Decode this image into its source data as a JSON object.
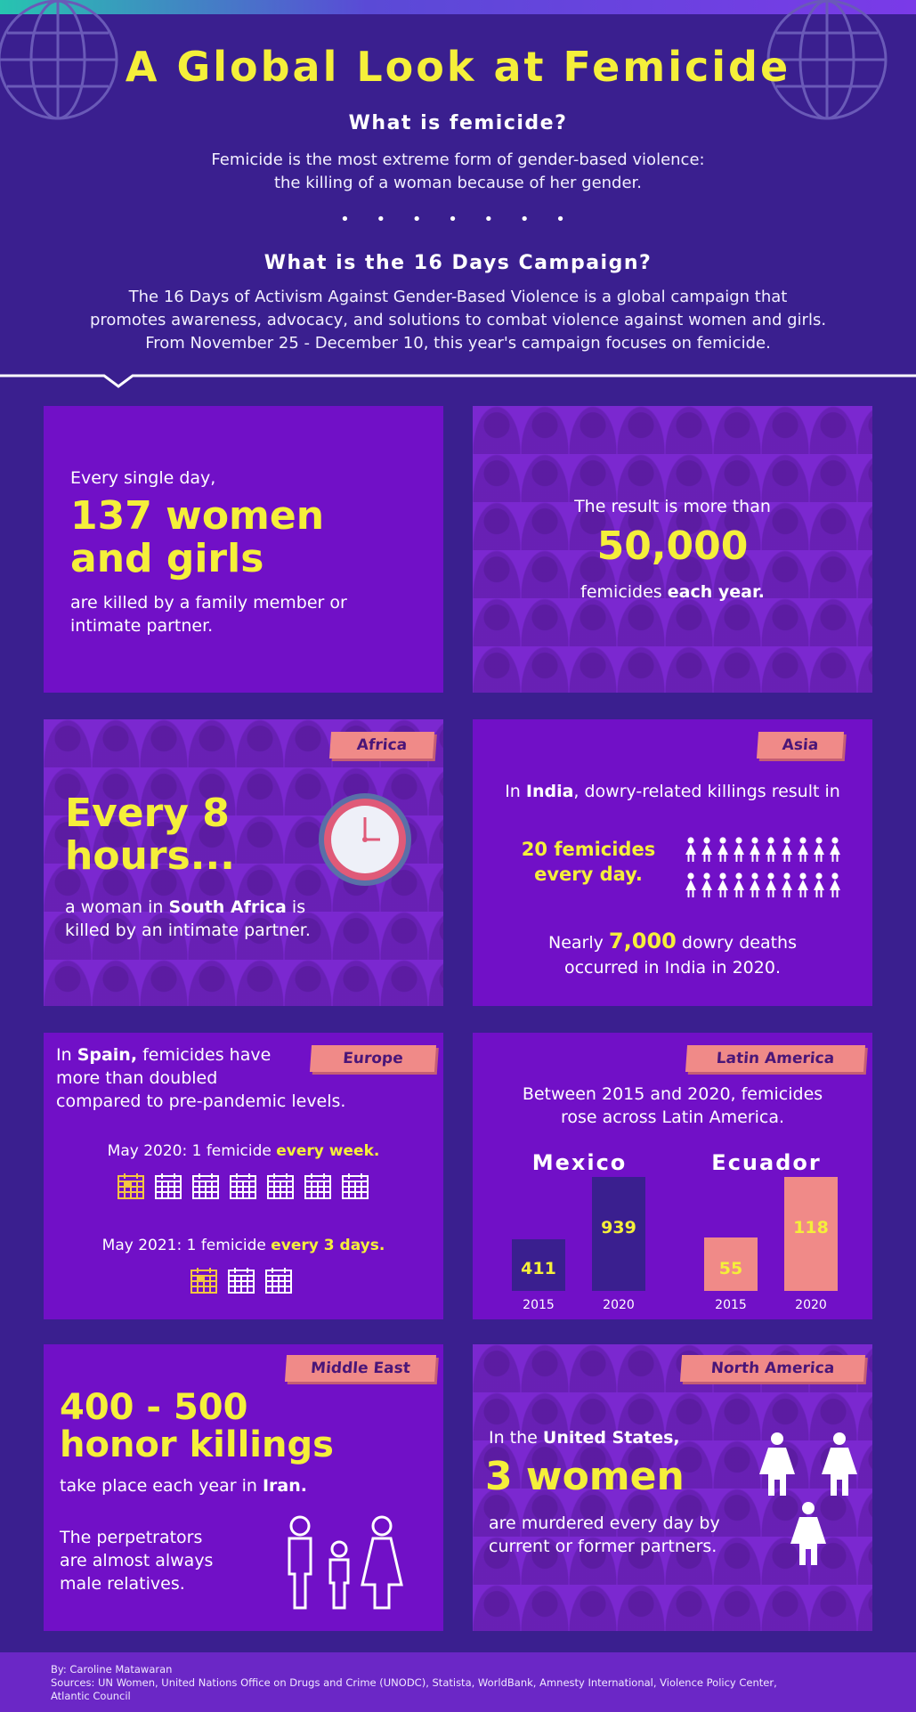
{
  "header": {
    "title": "A Global Look at Femicide",
    "q1": "What is femicide?",
    "a1_line1": "Femicide is the most extreme form of gender-based violence:",
    "a1_line2": "the killing of a woman because of her gender.",
    "dots": "• • • • • • •",
    "q2": "What is the 16 Days Campaign?",
    "a2_line1": "The 16 Days of Activism Against Gender-Based Violence is a global campaign that",
    "a2_line2": "promotes awareness, advocacy, and solutions to combat violence against women and girls.",
    "a2_line3": "From November 25 - December 10, this year's campaign focuses on femicide."
  },
  "card_daily": {
    "intro": "Every single day,",
    "big_line1": "137 women",
    "big_line2": "and girls",
    "outro_line1": "are killed by a family member or",
    "outro_line2": "intimate partner."
  },
  "card_yearly": {
    "intro": "The result is more than",
    "big": "50,000",
    "outro_plain": "femicides ",
    "outro_bold": "each year."
  },
  "card_africa": {
    "tag": "Africa",
    "big_line1": "Every 8",
    "big_line2": "hours...",
    "t1": "a woman in ",
    "t_bold": "South Africa",
    "t2": " is",
    "t3": "killed by an intimate partner."
  },
  "card_asia": {
    "tag": "Asia",
    "l1_a": "In ",
    "l1_bold": "India",
    "l1_b": ", dowry-related killings result in",
    "stat_line1": "20 femicides",
    "stat_line2": "every day.",
    "n1": "Nearly ",
    "n_big": "7,000",
    "n2": " dowry deaths",
    "n3": "occurred in India in 2020."
  },
  "card_europe": {
    "tag": "Europe",
    "l1_a": "In ",
    "l1_bold": "Spain,",
    "l1_b": " femicides have",
    "l2": "more than doubled",
    "l3": "compared to pre-pandemic levels.",
    "may2020_a": "May 2020: 1 femicide ",
    "may2020_b": "every week.",
    "may2021_a": "May 2021: 1 femicide ",
    "may2021_b": "every 3 days."
  },
  "card_latam": {
    "tag": "Latin America",
    "l1": "Between 2015 and 2020, femicides",
    "l2": "rose across Latin America."
  },
  "chart_data": {
    "type": "bar",
    "title": "",
    "groups": [
      "Mexico",
      "Ecuador"
    ],
    "categories": [
      "2015",
      "2020"
    ],
    "series": [
      {
        "name": "Mexico",
        "values": [
          411,
          939
        ]
      },
      {
        "name": "Ecuador",
        "values": [
          55,
          118
        ]
      }
    ],
    "value_labels": {
      "mexico_2015": "411",
      "mexico_2020": "939",
      "ecuador_2015": "55",
      "ecuador_2020": "118"
    },
    "colors": {
      "mexico": "#3a1f8f",
      "ecuador": "#f08a88",
      "label": "#f5ef3a"
    }
  },
  "card_mideast": {
    "tag": "Middle East",
    "big_line1": "400 - 500",
    "big_line2": "honor killings",
    "l1_a": "take place each year in ",
    "l1_bold": "Iran.",
    "p1": "The perpetrators",
    "p2": "are almost always",
    "p3": "male relatives."
  },
  "card_namerica": {
    "tag": "North America",
    "l1_a": "In the ",
    "l1_bold": "United States,",
    "big": "3 women",
    "l2": "are murdered every day by",
    "l3": "current or former partners."
  },
  "footer": {
    "by": "By: Caroline Matawaran",
    "sources": "Sources: UN Women, United Nations Office on Drugs and Crime (UNODC), Statista, WorldBank, Amnesty International, Violence Policy Center,",
    "sources2": "Atlantic Council"
  },
  "colors": {
    "background": "#3a1f8f",
    "card": "#7110c7",
    "yellow": "#f5ef3a",
    "tag": "#f08a88"
  }
}
